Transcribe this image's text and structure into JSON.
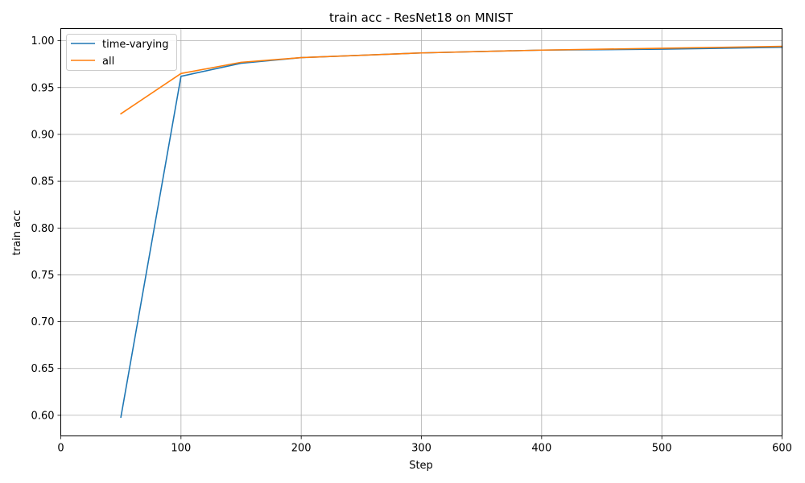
{
  "chart_data": {
    "type": "line",
    "title": "train acc - ResNet18 on MNIST",
    "xlabel": "Step",
    "ylabel": "train acc",
    "xlim": [
      0,
      600
    ],
    "ylim": [
      0.578,
      1.013
    ],
    "xticks": [
      0,
      100,
      200,
      300,
      400,
      500,
      600
    ],
    "yticks": [
      0.6,
      0.65,
      0.7,
      0.75,
      0.8,
      0.85,
      0.9,
      0.95,
      1.0
    ],
    "xtick_labels": [
      "0",
      "100",
      "200",
      "300",
      "400",
      "500",
      "600"
    ],
    "ytick_labels": [
      "0.60",
      "0.65",
      "0.70",
      "0.75",
      "0.80",
      "0.85",
      "0.90",
      "0.95",
      "1.00"
    ],
    "grid": true,
    "legend_position": "top-left",
    "series": [
      {
        "name": "time-varying",
        "color": "#1f77b4",
        "x": [
          50,
          100,
          150,
          200,
          300,
          400,
          500,
          600
        ],
        "y": [
          0.598,
          0.962,
          0.976,
          0.982,
          0.987,
          0.99,
          0.991,
          0.993
        ]
      },
      {
        "name": "all",
        "color": "#ff7f0e",
        "x": [
          50,
          100,
          150,
          200,
          300,
          400,
          500,
          600
        ],
        "y": [
          0.922,
          0.965,
          0.977,
          0.982,
          0.987,
          0.99,
          0.992,
          0.994
        ]
      }
    ]
  }
}
